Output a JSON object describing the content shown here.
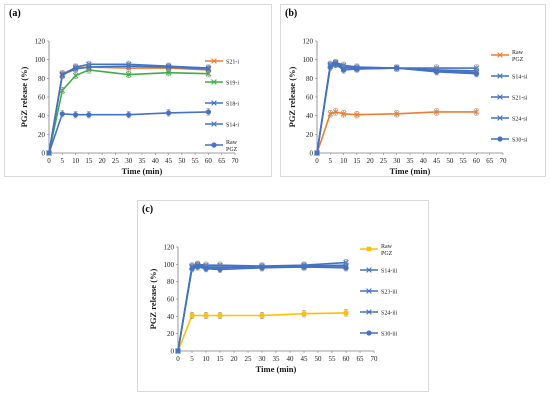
{
  "chart_data": [
    {
      "panel_label": "(a)",
      "type": "line",
      "xlabel": "Time (min)",
      "ylabel": "PGZ release (%)",
      "xlim": [
        0,
        70
      ],
      "ylim": [
        0,
        120
      ],
      "xticks": [
        "0",
        "5",
        "10",
        "15",
        "20",
        "25",
        "30",
        "35",
        "40",
        "45",
        "50",
        "55",
        "60",
        "65",
        "70"
      ],
      "yticks": [
        "0",
        "20",
        "40",
        "60",
        "80",
        "100",
        "120"
      ],
      "grid": false,
      "legend_position": "right",
      "series": [
        {
          "name": "S21-i",
          "color": "#ed7d31",
          "marker": "x",
          "x": [
            0,
            5,
            10,
            15,
            30,
            45,
            60
          ],
          "y": [
            0,
            85,
            91,
            92,
            91,
            91,
            89
          ]
        },
        {
          "name": "S19-i",
          "color": "#3eae49",
          "marker": "x",
          "x": [
            0,
            5,
            10,
            15,
            30,
            45,
            60
          ],
          "y": [
            0,
            67,
            83,
            89,
            84,
            86,
            85
          ]
        },
        {
          "name": "S18-i",
          "color": "#4472c4",
          "marker": "x",
          "x": [
            0,
            5,
            10,
            15,
            30,
            45,
            60
          ],
          "y": [
            0,
            83,
            92,
            95,
            95,
            93,
            91
          ]
        },
        {
          "name": "S14-i",
          "color": "#4472c4",
          "marker": "x",
          "x": [
            0,
            5,
            10,
            15,
            30,
            45,
            60
          ],
          "y": [
            0,
            84,
            90,
            92,
            93,
            92,
            90
          ]
        },
        {
          "name": "Raw PGZ",
          "color": "#4472c4",
          "marker": "circle",
          "x": [
            0,
            5,
            10,
            15,
            30,
            45,
            60
          ],
          "y": [
            0,
            42,
            41,
            41,
            41,
            43,
            44
          ]
        }
      ]
    },
    {
      "panel_label": "(b)",
      "type": "line",
      "xlabel": "Time (min)",
      "ylabel": "PGZ release (%)",
      "xlim": [
        0,
        70
      ],
      "ylim": [
        0,
        120
      ],
      "xticks": [
        "0",
        "5",
        "10",
        "15",
        "20",
        "25",
        "30",
        "35",
        "40",
        "45",
        "50",
        "55",
        "60",
        "65",
        "70"
      ],
      "yticks": [
        "0",
        "20",
        "40",
        "60",
        "80",
        "100",
        "120"
      ],
      "grid": false,
      "legend_position": "right",
      "series": [
        {
          "name": "Raw PGZ",
          "color": "#ed7d31",
          "marker": "x",
          "x": [
            0,
            5,
            7,
            10,
            15,
            30,
            45,
            60
          ],
          "y": [
            0,
            42,
            44,
            42,
            41,
            42,
            44,
            44
          ]
        },
        {
          "name": "S14-si",
          "color": "#4472c4",
          "marker": "x",
          "x": [
            0,
            5,
            7,
            10,
            15,
            30,
            45,
            60
          ],
          "y": [
            0,
            95,
            97,
            94,
            92,
            91,
            91,
            91
          ]
        },
        {
          "name": "S21-si",
          "color": "#4472c4",
          "marker": "x",
          "x": [
            0,
            5,
            7,
            10,
            15,
            30,
            45,
            60
          ],
          "y": [
            0,
            94,
            96,
            92,
            91,
            91,
            89,
            88
          ]
        },
        {
          "name": "S24-si",
          "color": "#4472c4",
          "marker": "x",
          "x": [
            0,
            5,
            7,
            10,
            15,
            30,
            45,
            60
          ],
          "y": [
            0,
            93,
            95,
            90,
            90,
            91,
            88,
            86
          ]
        },
        {
          "name": "S30-si",
          "color": "#4472c4",
          "marker": "circle",
          "x": [
            0,
            5,
            7,
            10,
            15,
            30,
            45,
            60
          ],
          "y": [
            0,
            92,
            95,
            89,
            90,
            91,
            87,
            85
          ]
        }
      ]
    },
    {
      "panel_label": "(c)",
      "type": "line",
      "xlabel": "Time (min)",
      "ylabel": "PGZ release (%)",
      "xlim": [
        0,
        70
      ],
      "ylim": [
        0,
        120
      ],
      "xticks": [
        "0",
        "5",
        "10",
        "15",
        "20",
        "25",
        "30",
        "35",
        "40",
        "45",
        "50",
        "55",
        "60",
        "65",
        "70"
      ],
      "yticks": [
        "0",
        "20",
        "40",
        "60",
        "80",
        "100",
        "120"
      ],
      "grid": false,
      "legend_position": "right",
      "series": [
        {
          "name": "Raw PGZ",
          "color": "#ffc000",
          "marker": "square",
          "x": [
            0,
            5,
            10,
            15,
            30,
            45,
            60
          ],
          "y": [
            0,
            41,
            41,
            41,
            41,
            43,
            44
          ]
        },
        {
          "name": "S14-iii",
          "color": "#4472c4",
          "marker": "x",
          "x": [
            0,
            5,
            7,
            10,
            15,
            30,
            45,
            60
          ],
          "y": [
            0,
            98,
            100,
            99,
            99,
            98,
            99,
            102
          ]
        },
        {
          "name": "S23-iii",
          "color": "#4472c4",
          "marker": "x",
          "x": [
            0,
            5,
            7,
            10,
            15,
            30,
            45,
            60
          ],
          "y": [
            0,
            97,
            99,
            97,
            97,
            97,
            98,
            99
          ]
        },
        {
          "name": "S24-iii",
          "color": "#4472c4",
          "marker": "x",
          "x": [
            0,
            5,
            7,
            10,
            15,
            30,
            45,
            60
          ],
          "y": [
            0,
            96,
            98,
            96,
            96,
            97,
            97,
            97
          ]
        },
        {
          "name": "S30-iii",
          "color": "#4472c4",
          "marker": "circle",
          "x": [
            0,
            5,
            7,
            10,
            15,
            30,
            45,
            60
          ],
          "y": [
            0,
            95,
            97,
            95,
            94,
            96,
            97,
            96
          ]
        }
      ]
    }
  ]
}
